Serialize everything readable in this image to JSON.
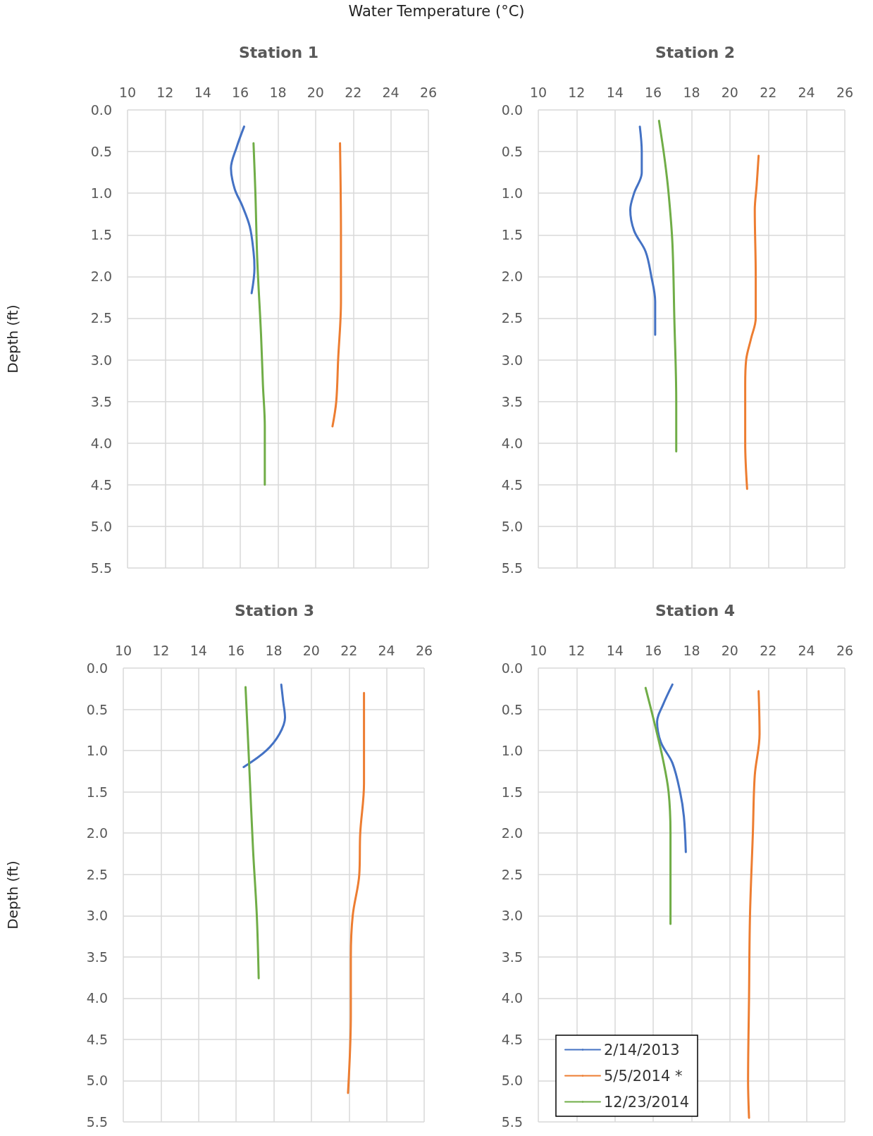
{
  "chart_data": [
    {
      "type": "line",
      "title": "Station 1",
      "xlabel": "Water Temperature (°C)",
      "ylabel": "Depth (ft)",
      "xlim": [
        10,
        26
      ],
      "xticks": [
        10,
        12,
        14,
        16,
        18,
        20,
        22,
        24,
        26
      ],
      "ylim": [
        5.5,
        0
      ],
      "yticks": [
        {
          "value": 0,
          "label": "0.0"
        },
        0.5,
        {
          "value": 1,
          "label": "1.0"
        },
        1.5,
        {
          "value": 2,
          "label": "2.0"
        },
        2.5,
        {
          "value": 3,
          "label": "3.0"
        },
        3.5,
        {
          "value": 4,
          "label": "4.0"
        },
        4.5,
        {
          "value": 5,
          "label": "5.0"
        },
        5.5
      ],
      "grid": true,
      "legend": false,
      "marker": "none",
      "line_style": "solid",
      "series": [
        {
          "color": "#4472c4",
          "x": [
            16.2,
            15.8,
            15.5,
            15.7,
            16.1,
            16.5,
            16.7,
            16.75,
            16.6
          ],
          "values": [
            0.2,
            0.45,
            0.7,
            0.95,
            1.15,
            1.4,
            1.7,
            1.9,
            2.2
          ]
        },
        {
          "color": "#ed7d31",
          "x": [
            21.3,
            21.35,
            21.35,
            21.2,
            21.1,
            20.9
          ],
          "values": [
            0.4,
            1.5,
            2.3,
            3.0,
            3.5,
            3.8
          ]
        },
        {
          "color": "#70ad47",
          "x": [
            16.7,
            16.8,
            16.9,
            17.1,
            17.2,
            17.3,
            17.3
          ],
          "values": [
            0.4,
            1.0,
            1.8,
            2.7,
            3.3,
            3.8,
            4.5
          ]
        }
      ]
    },
    {
      "type": "line",
      "title": "Station 2",
      "xlim": [
        10,
        26
      ],
      "xticks": [
        10,
        12,
        14,
        16,
        18,
        20,
        22,
        24,
        26
      ],
      "ylim": [
        5.5,
        0
      ],
      "yticks": [
        {
          "value": 0,
          "label": "0.0"
        },
        0.5,
        {
          "value": 1,
          "label": "1.0"
        },
        1.5,
        {
          "value": 2,
          "label": "2.0"
        },
        2.5,
        {
          "value": 3,
          "label": "3.0"
        },
        3.5,
        {
          "value": 4,
          "label": "4.0"
        },
        4.5,
        {
          "value": 5,
          "label": "5.0"
        },
        5.5
      ],
      "grid": true,
      "legend": false,
      "marker": "none",
      "line_style": "solid",
      "series": [
        {
          "color": "#4472c4",
          "x": [
            15.3,
            15.4,
            15.4,
            15.0,
            14.8,
            15.0,
            15.6,
            15.9,
            16.1,
            16.1
          ],
          "values": [
            0.2,
            0.5,
            0.75,
            1.0,
            1.2,
            1.45,
            1.7,
            2.0,
            2.3,
            2.7
          ]
        },
        {
          "color": "#ed7d31",
          "x": [
            21.5,
            21.4,
            21.3,
            21.35,
            21.35,
            21.1,
            20.85,
            20.8,
            20.8,
            20.9
          ],
          "values": [
            0.55,
            0.9,
            1.2,
            2.0,
            2.5,
            2.75,
            3.0,
            3.3,
            4.0,
            4.55
          ]
        },
        {
          "color": "#70ad47",
          "x": [
            16.3,
            16.6,
            16.8,
            17.0,
            17.1,
            17.2,
            17.2
          ],
          "values": [
            0.13,
            0.6,
            1.0,
            1.6,
            2.5,
            3.5,
            4.1
          ]
        }
      ]
    },
    {
      "type": "line",
      "title": "Station 3",
      "ylabel": "Depth (ft)",
      "xlim": [
        10,
        26
      ],
      "xticks": [
        10,
        12,
        14,
        16,
        18,
        20,
        22,
        24,
        26
      ],
      "ylim": [
        5.5,
        0
      ],
      "yticks": [
        {
          "value": 0,
          "label": "0.0"
        },
        0.5,
        {
          "value": 1,
          "label": "1.0"
        },
        1.5,
        {
          "value": 2,
          "label": "2.0"
        },
        2.5,
        {
          "value": 3,
          "label": "3.0"
        },
        3.5,
        {
          "value": 4,
          "label": "4.0"
        },
        4.5,
        {
          "value": 5,
          "label": "5.0"
        },
        5.5
      ],
      "grid": true,
      "legend": false,
      "marker": "none",
      "line_style": "solid",
      "series": [
        {
          "color": "#4472c4",
          "x": [
            18.4,
            18.5,
            18.6,
            18.3,
            17.6,
            16.4
          ],
          "values": [
            0.2,
            0.4,
            0.6,
            0.8,
            1.0,
            1.2
          ]
        },
        {
          "color": "#ed7d31",
          "x": [
            22.8,
            22.8,
            22.6,
            22.55,
            22.2,
            22.1,
            22.1,
            21.95
          ],
          "values": [
            0.3,
            1.4,
            2.0,
            2.5,
            3.0,
            3.5,
            4.2,
            5.15
          ]
        },
        {
          "color": "#70ad47",
          "x": [
            16.5,
            16.7,
            16.9,
            17.1,
            17.2
          ],
          "values": [
            0.23,
            1.2,
            2.2,
            3.0,
            3.76
          ]
        }
      ]
    },
    {
      "type": "line",
      "title": "Station 4",
      "xlim": [
        10,
        26
      ],
      "xticks": [
        10,
        12,
        14,
        16,
        18,
        20,
        22,
        24,
        26
      ],
      "ylim": [
        5.5,
        0
      ],
      "yticks": [
        {
          "value": 0,
          "label": "0.0"
        },
        0.5,
        {
          "value": 1,
          "label": "1.0"
        },
        1.5,
        {
          "value": 2,
          "label": "2.0"
        },
        2.5,
        {
          "value": 3,
          "label": "3.0"
        },
        3.5,
        {
          "value": 4,
          "label": "4.0"
        },
        4.5,
        {
          "value": 5,
          "label": "5.0"
        },
        5.5
      ],
      "grid": true,
      "legend": "bottom left",
      "marker": "none",
      "line_style": "solid",
      "series": [
        {
          "name": "2/14/2013",
          "color": "#4472c4",
          "x": [
            17.0,
            16.5,
            16.2,
            16.4,
            17.0,
            17.4,
            17.6,
            17.7
          ],
          "values": [
            0.2,
            0.45,
            0.65,
            0.9,
            1.15,
            1.5,
            1.8,
            2.23
          ]
        },
        {
          "name": "5/5/2014 *",
          "color": "#ed7d31",
          "x": [
            21.5,
            21.55,
            21.3,
            21.2,
            21.05,
            21.0,
            20.95,
            21.0
          ],
          "values": [
            0.28,
            0.8,
            1.3,
            2.0,
            3.0,
            4.0,
            5.0,
            5.45
          ]
        },
        {
          "name": "12/23/2014",
          "color": "#70ad47",
          "x": [
            15.6,
            16.1,
            16.5,
            16.8,
            16.9,
            16.9
          ],
          "values": [
            0.24,
            0.7,
            1.1,
            1.5,
            2.0,
            3.1
          ]
        }
      ]
    }
  ]
}
